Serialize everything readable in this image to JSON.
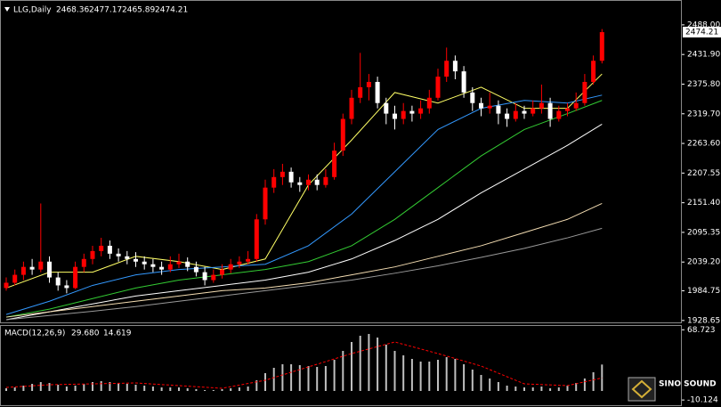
{
  "chart_data": [
    {
      "type": "candlestick",
      "symbol": "LLG,Daily",
      "header_values": [
        2468.36,
        2477.17,
        2465.89,
        2474.21
      ],
      "up_color": "#ff0000",
      "down_color": "#ffffff",
      "ylim": [
        1925,
        2535
      ],
      "yticks": [
        {
          "value": 2488,
          "label": "2488.00"
        },
        {
          "value": 2431.9,
          "label": "2431.90"
        },
        {
          "value": 2375.8,
          "label": "2375.80"
        },
        {
          "value": 2319.7,
          "label": "2319.70"
        },
        {
          "value": 2263.6,
          "label": "2263.60"
        },
        {
          "value": 2207.55,
          "label": "2207.55"
        },
        {
          "value": 2151.4,
          "label": "2151.40"
        },
        {
          "value": 2095.35,
          "label": "2095.35"
        },
        {
          "value": 2039.2,
          "label": "2039.20"
        },
        {
          "value": 1984.75,
          "label": "1984.75"
        },
        {
          "value": 1928.65,
          "label": "1928.65"
        }
      ],
      "candles": [
        [
          1990,
          2010,
          1985,
          2000
        ],
        [
          2000,
          2025,
          1995,
          2015
        ],
        [
          2015,
          2040,
          2005,
          2030
        ],
        [
          2030,
          2045,
          2015,
          2025
        ],
        [
          2025,
          2150,
          2020,
          2040
        ],
        [
          2040,
          2050,
          2000,
          2010
        ],
        [
          2010,
          2020,
          1985,
          1995
        ],
        [
          1995,
          2005,
          1980,
          1990
        ],
        [
          1990,
          2040,
          1988,
          2030
        ],
        [
          2030,
          2055,
          2020,
          2045
        ],
        [
          2045,
          2070,
          2035,
          2060
        ],
        [
          2060,
          2085,
          2050,
          2070
        ],
        [
          2070,
          2080,
          2045,
          2055
        ],
        [
          2055,
          2065,
          2040,
          2050
        ],
        [
          2050,
          2060,
          2035,
          2045
        ],
        [
          2045,
          2058,
          2030,
          2040
        ],
        [
          2040,
          2050,
          2025,
          2035
        ],
        [
          2035,
          2045,
          2020,
          2030
        ],
        [
          2030,
          2040,
          2015,
          2025
        ],
        [
          2025,
          2050,
          2020,
          2035
        ],
        [
          2035,
          2055,
          2028,
          2040
        ],
        [
          2040,
          2048,
          2022,
          2030
        ],
        [
          2030,
          2040,
          2012,
          2020
        ],
        [
          2020,
          2030,
          1995,
          2005
        ],
        [
          2005,
          2025,
          2000,
          2015
        ],
        [
          2015,
          2035,
          2008,
          2025
        ],
        [
          2025,
          2045,
          2018,
          2035
        ],
        [
          2035,
          2050,
          2028,
          2040
        ],
        [
          2040,
          2060,
          2035,
          2045
        ],
        [
          2045,
          2130,
          2040,
          2120
        ],
        [
          2120,
          2195,
          2110,
          2180
        ],
        [
          2180,
          2215,
          2170,
          2200
        ],
        [
          2200,
          2225,
          2185,
          2210
        ],
        [
          2210,
          2218,
          2180,
          2190
        ],
        [
          2190,
          2200,
          2172,
          2185
        ],
        [
          2185,
          2205,
          2175,
          2195
        ],
        [
          2195,
          2205,
          2175,
          2185
        ],
        [
          2185,
          2215,
          2180,
          2200
        ],
        [
          2200,
          2265,
          2195,
          2250
        ],
        [
          2250,
          2320,
          2240,
          2310
        ],
        [
          2310,
          2365,
          2300,
          2350
        ],
        [
          2350,
          2435,
          2340,
          2370
        ],
        [
          2370,
          2395,
          2345,
          2380
        ],
        [
          2380,
          2390,
          2330,
          2340
        ],
        [
          2340,
          2350,
          2300,
          2320
        ],
        [
          2320,
          2335,
          2290,
          2310
        ],
        [
          2310,
          2340,
          2300,
          2325
        ],
        [
          2325,
          2335,
          2305,
          2320
        ],
        [
          2320,
          2345,
          2310,
          2330
        ],
        [
          2330,
          2365,
          2320,
          2350
        ],
        [
          2350,
          2405,
          2345,
          2390
        ],
        [
          2390,
          2445,
          2380,
          2420
        ],
        [
          2420,
          2430,
          2385,
          2400
        ],
        [
          2400,
          2410,
          2350,
          2360
        ],
        [
          2360,
          2370,
          2325,
          2340
        ],
        [
          2340,
          2350,
          2315,
          2330
        ],
        [
          2330,
          2360,
          2320,
          2335
        ],
        [
          2335,
          2345,
          2300,
          2320
        ],
        [
          2320,
          2330,
          2295,
          2310
        ],
        [
          2310,
          2340,
          2305,
          2325
        ],
        [
          2325,
          2335,
          2310,
          2320
        ],
        [
          2320,
          2345,
          2315,
          2330
        ],
        [
          2330,
          2375,
          2320,
          2340
        ],
        [
          2340,
          2350,
          2295,
          2310
        ],
        [
          2310,
          2335,
          2305,
          2325
        ],
        [
          2325,
          2340,
          2315,
          2330
        ],
        [
          2330,
          2360,
          2325,
          2340
        ],
        [
          2340,
          2395,
          2335,
          2380
        ],
        [
          2380,
          2430,
          2375,
          2420
        ],
        [
          2420,
          2480,
          2415,
          2474.21
        ]
      ],
      "series": [
        {
          "color": "#ffff66",
          "x": [
            0,
            5,
            10,
            15,
            20,
            25,
            30,
            35,
            40,
            45,
            50,
            55,
            60,
            65,
            69
          ],
          "values": [
            1990,
            2020,
            2020,
            2050,
            2040,
            2025,
            2045,
            2185,
            2270,
            2360,
            2340,
            2370,
            2330,
            2330,
            2395
          ]
        },
        {
          "color": "#3399ff",
          "x": [
            0,
            5,
            10,
            15,
            20,
            25,
            30,
            35,
            40,
            45,
            50,
            55,
            60,
            65,
            69
          ],
          "values": [
            1940,
            1965,
            1995,
            2015,
            2025,
            2030,
            2035,
            2070,
            2130,
            2210,
            2290,
            2330,
            2345,
            2340,
            2355
          ]
        },
        {
          "color": "#33cc33",
          "x": [
            0,
            5,
            10,
            15,
            20,
            25,
            30,
            35,
            40,
            45,
            50,
            55,
            60,
            65,
            69
          ],
          "values": [
            1935,
            1950,
            1970,
            1990,
            2005,
            2015,
            2025,
            2040,
            2070,
            2120,
            2180,
            2240,
            2290,
            2320,
            2345
          ]
        },
        {
          "color": "#ffffff",
          "x": [
            0,
            5,
            10,
            15,
            20,
            25,
            30,
            35,
            40,
            45,
            50,
            55,
            60,
            65,
            69
          ],
          "values": [
            1930,
            1945,
            1960,
            1975,
            1985,
            1995,
            2005,
            2020,
            2045,
            2080,
            2120,
            2170,
            2215,
            2260,
            2300
          ]
        },
        {
          "color": "#f5deb3",
          "x": [
            0,
            5,
            10,
            15,
            20,
            25,
            30,
            35,
            40,
            45,
            50,
            55,
            60,
            65,
            69
          ],
          "values": [
            1935,
            1945,
            1955,
            1965,
            1975,
            1985,
            1990,
            2000,
            2015,
            2030,
            2050,
            2070,
            2095,
            2120,
            2150
          ]
        },
        {
          "color": "#999999",
          "x": [
            0,
            5,
            10,
            15,
            20,
            25,
            30,
            35,
            40,
            45,
            50,
            55,
            60,
            65,
            69
          ],
          "values": [
            1930,
            1938,
            1946,
            1955,
            1965,
            1975,
            1985,
            1995,
            2005,
            2018,
            2032,
            2048,
            2065,
            2085,
            2103
          ]
        }
      ]
    },
    {
      "type": "macd",
      "title": "MACD(12,26,9)",
      "header_values": [
        {
          "value": 29.68,
          "label": "29.680"
        },
        14.619
      ],
      "ylim": [
        -16,
        73
      ],
      "yticks": [
        68.723,
        -10.124
      ],
      "histogram_color": "#c0c0c0",
      "signal_color": "#ff0000",
      "values": [
        3,
        4,
        6,
        8,
        10,
        9,
        7,
        5,
        6,
        8,
        10,
        11,
        10,
        9,
        8,
        7,
        6,
        5,
        4,
        4,
        4,
        3,
        2,
        1,
        1,
        2,
        3,
        4,
        5,
        12,
        20,
        26,
        30,
        30,
        29,
        28,
        27,
        28,
        35,
        45,
        55,
        62,
        64,
        60,
        52,
        45,
        40,
        36,
        33,
        33,
        35,
        38,
        36,
        30,
        24,
        18,
        14,
        10,
        6,
        5,
        4,
        4,
        5,
        3,
        4,
        6,
        9,
        14,
        21,
        29.68
      ],
      "signal_x": [
        0,
        5,
        10,
        15,
        20,
        25,
        30,
        35,
        40,
        45,
        50,
        55,
        60,
        65,
        69
      ],
      "signal": [
        4,
        7,
        8,
        9,
        6,
        3,
        12,
        27,
        42,
        55,
        42,
        28,
        8,
        6,
        14.619
      ]
    }
  ],
  "watermark": "SINO SOUND"
}
